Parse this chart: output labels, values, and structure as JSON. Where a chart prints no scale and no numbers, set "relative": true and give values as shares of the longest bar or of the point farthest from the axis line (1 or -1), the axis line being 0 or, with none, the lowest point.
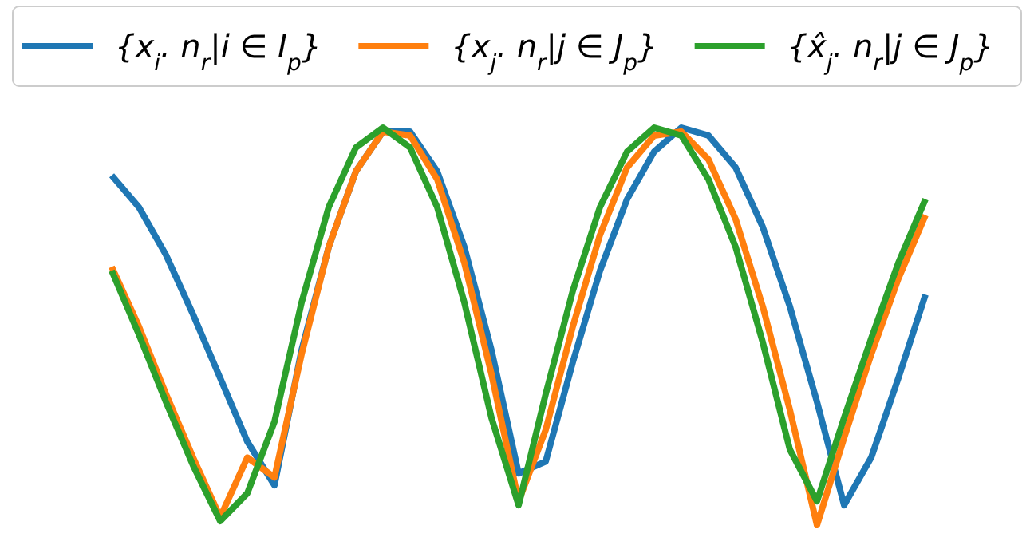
{
  "chart_data": {
    "type": "line",
    "relative": true,
    "legend": "top",
    "line_style": "solid",
    "categories": [
      null,
      null,
      null,
      null,
      null,
      null,
      null,
      null,
      null,
      null,
      null,
      null,
      null,
      null,
      null,
      null,
      null,
      null,
      null,
      null,
      null,
      null,
      null,
      null,
      null,
      null,
      null,
      null,
      null,
      null,
      null
    ],
    "series": [
      {
        "name": "{x$_{i}$. n$_{r}$|i ∈ I$_{p}$}",
        "color": "#1f77b4",
        "values": [
          0.88,
          0.8,
          0.68,
          0.53,
          0.37,
          0.21,
          0.1,
          0.44,
          0.7,
          0.89,
          0.99,
          0.99,
          0.89,
          0.7,
          0.44,
          0.13,
          0.16,
          0.41,
          0.64,
          0.82,
          0.94,
          1.0,
          0.98,
          0.9,
          0.75,
          0.55,
          0.31,
          0.05,
          0.17,
          0.37,
          0.58
        ]
      },
      {
        "name": "{x$_{j}$. n$_{r}$|j ∈ J$_{p}$}",
        "color": "#ff7f0e",
        "values": [
          0.65,
          0.5,
          0.33,
          0.17,
          0.02,
          0.17,
          0.12,
          0.43,
          0.7,
          0.89,
          0.99,
          0.98,
          0.87,
          0.66,
          0.38,
          0.06,
          0.24,
          0.5,
          0.73,
          0.9,
          0.98,
          0.99,
          0.92,
          0.77,
          0.55,
          0.29,
          0,
          0.22,
          0.43,
          0.62,
          0.78
        ]
      },
      {
        "name": "{x̂$_{j}$. n$_{r}$|j ∈ J$_{p}$}",
        "color": "#2ca02c",
        "values": [
          0.64,
          0.48,
          0.31,
          0.15,
          0.01,
          0.08,
          0.26,
          0.56,
          0.8,
          0.95,
          1.0,
          0.95,
          0.8,
          0.56,
          0.27,
          0.05,
          0.33,
          0.59,
          0.8,
          0.94,
          1.0,
          0.98,
          0.87,
          0.7,
          0.46,
          0.19,
          0.06,
          0.27,
          0.47,
          0.66,
          0.82
        ]
      }
    ]
  }
}
